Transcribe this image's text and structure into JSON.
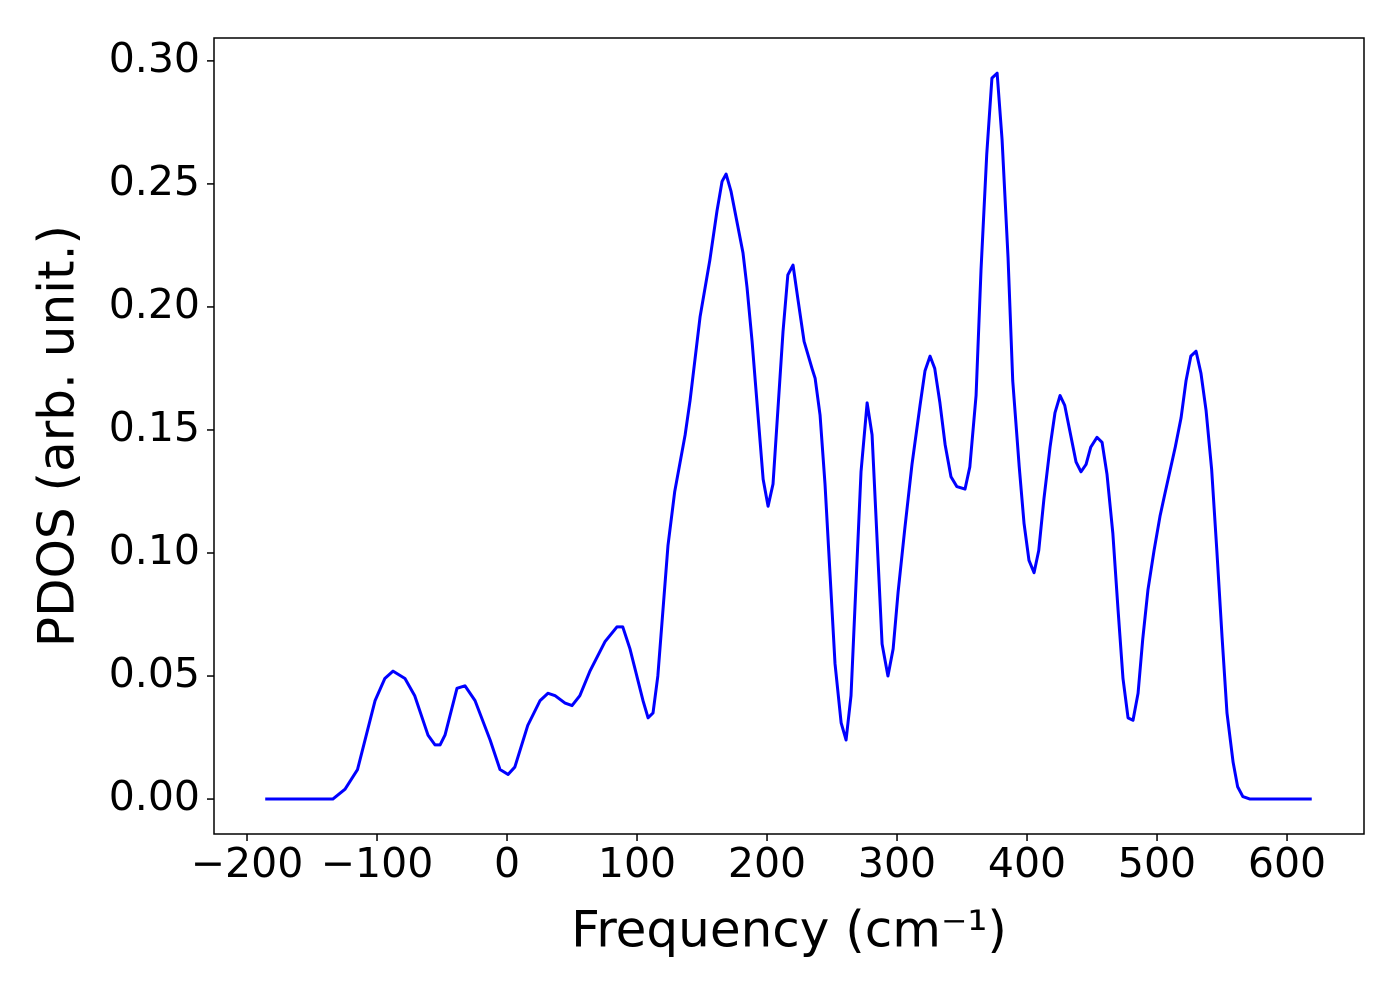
{
  "chart_data": {
    "type": "line",
    "x_label": "Frequency (cm⁻¹)",
    "y_label": "PDOS (arb. unit.)",
    "color": "#0000ff",
    "x": [
      -186,
      -134,
      -124.6,
      -115,
      -101.5,
      -94,
      -87.7,
      -78.5,
      -71,
      -60.8,
      -55.4,
      -51.5,
      -47.7,
      -38.5,
      -32.3,
      -24.6,
      -13,
      -5.4,
      0.8,
      6,
      16,
      25.4,
      31.5,
      37,
      44.6,
      50,
      56,
      63.8,
      75.4,
      84.6,
      89,
      94.6,
      104.6,
      108.5,
      112.3,
      116,
      123.8,
      129,
      137,
      140.8,
      148.5,
      156,
      161.5,
      165.4,
      168.5,
      172.3,
      181.5,
      184.6,
      188.5,
      197,
      200.8,
      204.6,
      212.3,
      216,
      220,
      223.8,
      228.5,
      234.6,
      237,
      240.8,
      244.6,
      252.3,
      257,
      260.8,
      264.6,
      272.3,
      277,
      280.8,
      288.5,
      293,
      297,
      300.8,
      306,
      311.5,
      317.7,
      321.5,
      325.4,
      329,
      333,
      337,
      341.5,
      346,
      352.3,
      356,
      360.8,
      364.6,
      369,
      373,
      377,
      380.8,
      385.4,
      389,
      394,
      397.7,
      401.5,
      405.4,
      409,
      413,
      417.7,
      421.5,
      425.4,
      429,
      437.7,
      441.5,
      445.4,
      449,
      453.8,
      457.7,
      461.5,
      466,
      470,
      473.8,
      477.7,
      481.5,
      485.4,
      489,
      493,
      497.7,
      502.3,
      506,
      514,
      518.5,
      522.3,
      526,
      530,
      533.8,
      537.7,
      542,
      546,
      550,
      553.8,
      558.5,
      562,
      566,
      571.5,
      619
    ],
    "values": [
      0,
      0,
      0.004,
      0.012,
      0.04,
      0.049,
      0.052,
      0.049,
      0.042,
      0.026,
      0.022,
      0.022,
      0.026,
      0.045,
      0.046,
      0.04,
      0.024,
      0.012,
      0.01,
      0.013,
      0.03,
      0.04,
      0.043,
      0.042,
      0.039,
      0.038,
      0.042,
      0.052,
      0.064,
      0.07,
      0.07,
      0.061,
      0.04,
      0.033,
      0.035,
      0.05,
      0.103,
      0.125,
      0.148,
      0.162,
      0.196,
      0.219,
      0.239,
      0.251,
      0.254,
      0.247,
      0.222,
      0.208,
      0.186,
      0.13,
      0.119,
      0.128,
      0.19,
      0.213,
      0.217,
      0.203,
      0.186,
      0.175,
      0.171,
      0.156,
      0.128,
      0.055,
      0.031,
      0.024,
      0.042,
      0.133,
      0.161,
      0.148,
      0.063,
      0.05,
      0.061,
      0.084,
      0.11,
      0.136,
      0.16,
      0.174,
      0.18,
      0.175,
      0.161,
      0.144,
      0.131,
      0.127,
      0.126,
      0.135,
      0.164,
      0.215,
      0.262,
      0.293,
      0.295,
      0.268,
      0.22,
      0.17,
      0.135,
      0.112,
      0.097,
      0.092,
      0.101,
      0.122,
      0.143,
      0.157,
      0.164,
      0.16,
      0.137,
      0.133,
      0.136,
      0.143,
      0.147,
      0.145,
      0.132,
      0.108,
      0.077,
      0.049,
      0.033,
      0.032,
      0.043,
      0.065,
      0.085,
      0.101,
      0.115,
      0.124,
      0.143,
      0.155,
      0.17,
      0.18,
      0.182,
      0.173,
      0.158,
      0.134,
      0.101,
      0.066,
      0.035,
      0.015,
      0.005,
      0.001,
      0,
      0
    ],
    "xlim": [
      -225.4,
      659.2
    ],
    "ylim": [
      -0.0142,
      0.3093
    ],
    "xticks": [
      {
        "value": -200,
        "label": "−200"
      },
      {
        "value": -100,
        "label": "−100"
      },
      0,
      100,
      200,
      300,
      400,
      500,
      600
    ],
    "yticks": [
      {
        "value": 0,
        "label": "0.00"
      },
      {
        "value": 0.05,
        "label": "0.05"
      },
      {
        "value": 0.1,
        "label": "0.10"
      },
      {
        "value": 0.15,
        "label": "0.15"
      },
      {
        "value": 0.2,
        "label": "0.20"
      },
      {
        "value": 0.25,
        "label": "0.25"
      },
      {
        "value": 0.3,
        "label": "0.30"
      }
    ]
  }
}
